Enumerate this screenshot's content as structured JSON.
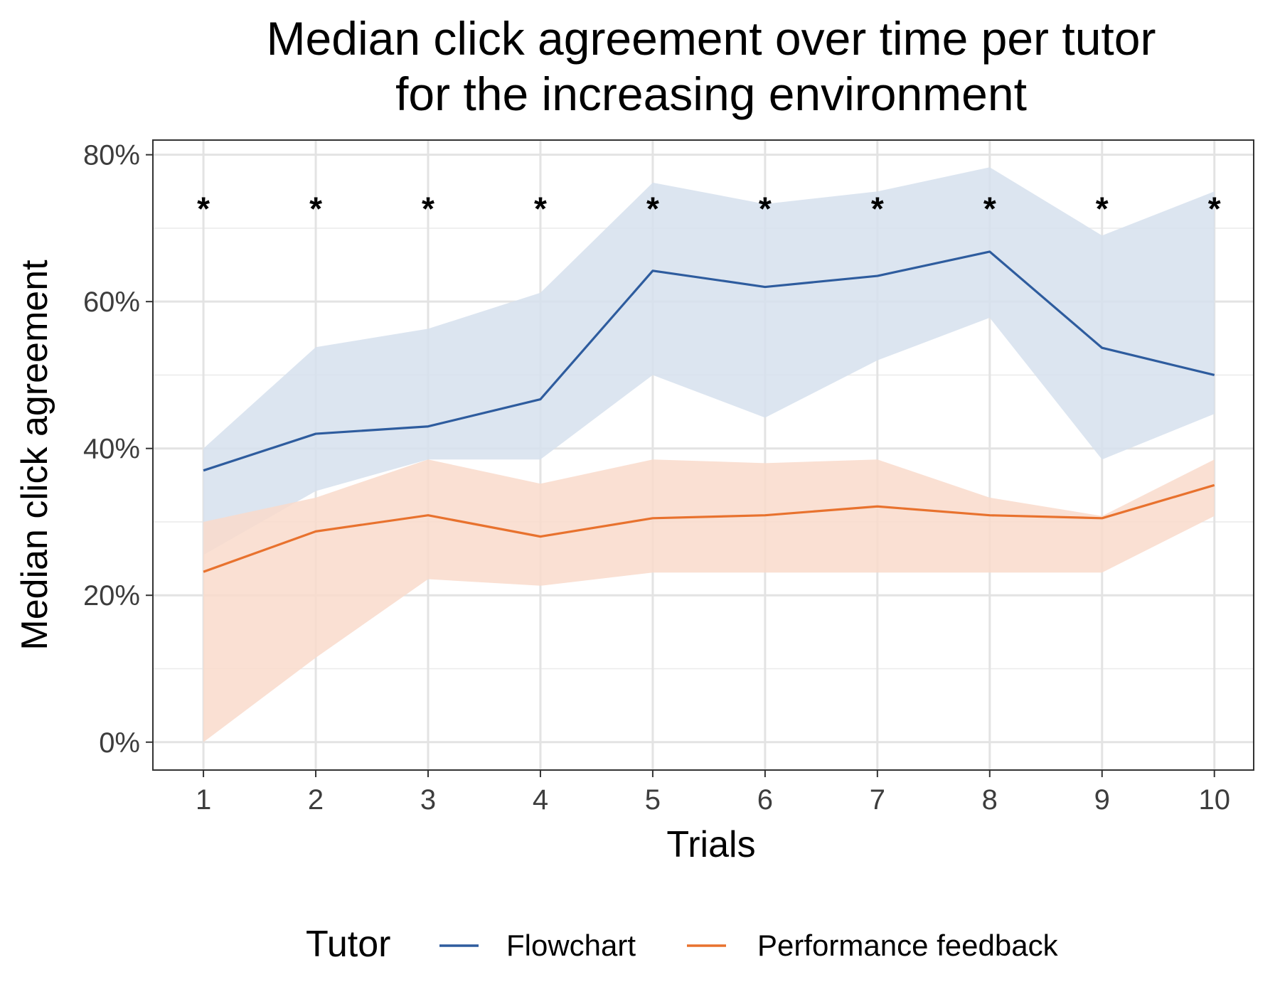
{
  "chart_data": {
    "type": "line",
    "title_lines": [
      "Median click agreement over time per tutor",
      "for the increasing environment"
    ],
    "xlabel": "Trials",
    "ylabel": "Median click agreement",
    "x": [
      1,
      2,
      3,
      4,
      5,
      6,
      7,
      8,
      9,
      10
    ],
    "x_tick_labels": [
      "1",
      "2",
      "3",
      "4",
      "5",
      "6",
      "7",
      "8",
      "9",
      "10"
    ],
    "xlim": [
      0.55,
      10.35
    ],
    "ylim": [
      -0.038,
      0.82
    ],
    "y_ticks": [
      0,
      0.2,
      0.4,
      0.6,
      0.8
    ],
    "y_tick_labels": [
      "0%",
      "20%",
      "40%",
      "60%",
      "80%"
    ],
    "grid": true,
    "significance_marker": "*",
    "significance_y": 0.74,
    "significant_trials": [
      1,
      2,
      3,
      4,
      5,
      6,
      7,
      8,
      9,
      10
    ],
    "legend": {
      "title": "Tutor",
      "position": "bottom",
      "entries": [
        "Flowchart",
        "Performance feedback"
      ]
    },
    "series": [
      {
        "name": "Flowchart",
        "color": "#2e5c9e",
        "band_color": "#d6e0ed",
        "values": [
          0.37,
          0.42,
          0.43,
          0.467,
          0.642,
          0.62,
          0.635,
          0.668,
          0.537,
          0.5
        ],
        "lower": [
          0.255,
          0.342,
          0.385,
          0.385,
          0.5,
          0.442,
          0.52,
          0.578,
          0.385,
          0.447
        ],
        "upper": [
          0.4,
          0.538,
          0.563,
          0.612,
          0.762,
          0.733,
          0.75,
          0.783,
          0.69,
          0.75
        ]
      },
      {
        "name": "Performance feedback",
        "color": "#e8722e",
        "band_color": "#f9dacb",
        "values": [
          0.232,
          0.287,
          0.309,
          0.28,
          0.305,
          0.309,
          0.321,
          0.309,
          0.305,
          0.35
        ],
        "lower": [
          0.0,
          0.115,
          0.222,
          0.213,
          0.231,
          0.231,
          0.231,
          0.231,
          0.231,
          0.308
        ],
        "upper": [
          0.3,
          0.333,
          0.385,
          0.352,
          0.385,
          0.38,
          0.385,
          0.333,
          0.308,
          0.385
        ]
      }
    ]
  }
}
